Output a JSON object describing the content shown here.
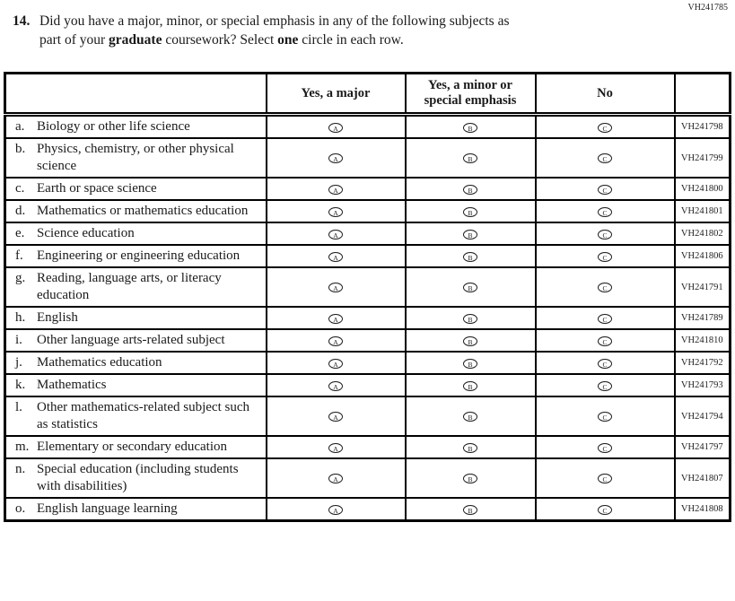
{
  "page": {
    "top_right_code": "VH241785"
  },
  "question": {
    "number": "14.",
    "line1": "Did you have a major, minor, or special emphasis in any of the following subjects as",
    "line2_pre": "part of your ",
    "line2_bold1": "graduate",
    "line2_mid": " coursework? Select ",
    "line2_bold2": "one",
    "line2_post": " circle in each row."
  },
  "table": {
    "headers": [
      "",
      "Yes, a major",
      "Yes, a minor or special emphasis",
      "No",
      ""
    ],
    "options": [
      "A",
      "B",
      "C"
    ],
    "rows": [
      {
        "letter": "a.",
        "label": "Biology or other life science",
        "code": "VH241798"
      },
      {
        "letter": "b.",
        "label": "Physics, chemistry, or other physical science",
        "code": "VH241799"
      },
      {
        "letter": "c.",
        "label": "Earth or space science",
        "code": "VH241800"
      },
      {
        "letter": "d.",
        "label": "Mathematics or mathematics education",
        "code": "VH241801"
      },
      {
        "letter": "e.",
        "label": "Science education",
        "code": "VH241802"
      },
      {
        "letter": "f.",
        "label": "Engineering or engineering education",
        "code": "VH241806"
      },
      {
        "letter": "g.",
        "label": "Reading, language arts, or literacy education",
        "code": "VH241791"
      },
      {
        "letter": "h.",
        "label": "English",
        "code": "VH241789"
      },
      {
        "letter": "i.",
        "label": "Other language arts-related subject",
        "code": "VH241810"
      },
      {
        "letter": "j.",
        "label": "Mathematics education",
        "code": "VH241792"
      },
      {
        "letter": "k.",
        "label": "Mathematics",
        "code": "VH241793"
      },
      {
        "letter": "l.",
        "label": "Other mathematics-related subject such as statistics",
        "code": "VH241794"
      },
      {
        "letter": "m.",
        "label": "Elementary or secondary education",
        "code": "VH241797"
      },
      {
        "letter": "n.",
        "label": "Special education (including students with disabilities)",
        "code": "VH241807"
      },
      {
        "letter": "o.",
        "label": "English language learning",
        "code": "VH241808"
      }
    ]
  }
}
